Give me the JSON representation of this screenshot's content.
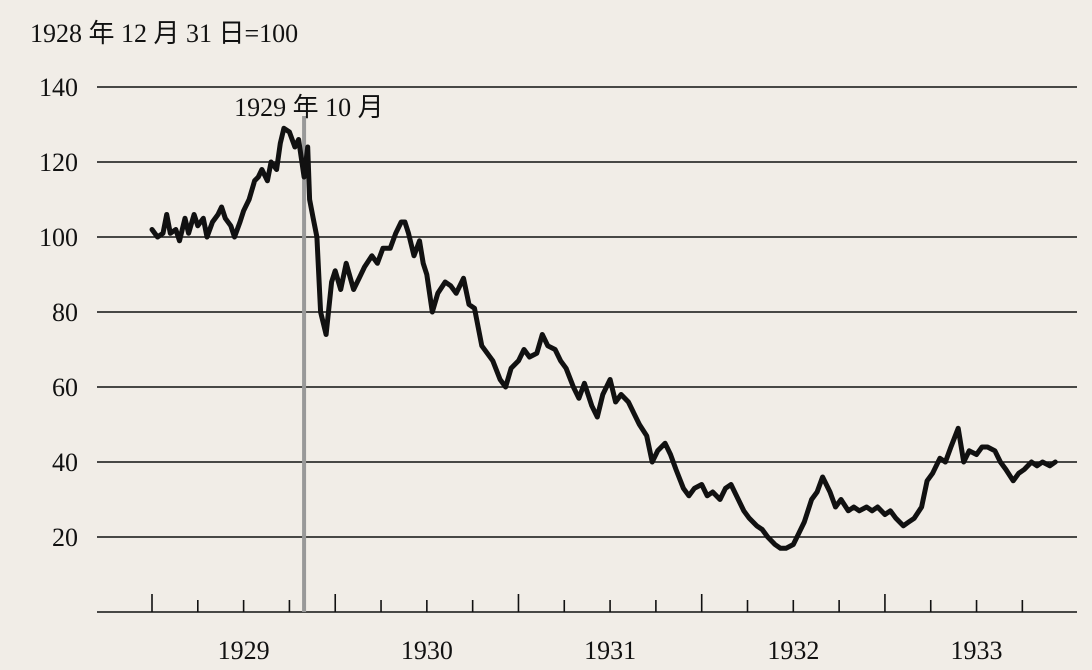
{
  "chart_data": {
    "type": "line",
    "unit_label": "1928 年 12 月 31 日=100",
    "annotation": {
      "label": "1929 年 10 月",
      "x": 1929.83
    },
    "ylim": [
      0,
      140
    ],
    "yticks": [
      20,
      40,
      60,
      80,
      100,
      120,
      140
    ],
    "ytick_labels": [
      "20",
      "40",
      "60",
      "80",
      "100",
      "120",
      "140"
    ],
    "xlim": [
      1929,
      1933.95
    ],
    "xtick_labels": [
      {
        "label": "1929",
        "x": 1929.5
      },
      {
        "label": "1930",
        "x": 1930.5
      },
      {
        "label": "1931",
        "x": 1931.5
      },
      {
        "label": "1932",
        "x": 1932.5
      },
      {
        "label": "1933",
        "x": 1933.5
      }
    ],
    "grid": true,
    "colors": {
      "line": "#111111",
      "annotation_line": "#999999",
      "grid": "#111111",
      "background": "#f1ede7"
    },
    "series": [
      {
        "x": [
          1929.0,
          1929.03,
          1929.06,
          1929.08,
          1929.1,
          1929.13,
          1929.15,
          1929.18,
          1929.2,
          1929.23,
          1929.25,
          1929.28,
          1929.3,
          1929.33,
          1929.36,
          1929.38,
          1929.4,
          1929.43,
          1929.45,
          1929.48,
          1929.5,
          1929.53,
          1929.56,
          1929.58,
          1929.6,
          1929.63,
          1929.65,
          1929.68,
          1929.7,
          1929.72,
          1929.75,
          1929.78,
          1929.8,
          1929.83,
          1929.85,
          1929.86,
          1929.88,
          1929.9,
          1929.92,
          1929.95,
          1929.98,
          1930.0,
          1930.03,
          1930.06,
          1930.1,
          1930.13,
          1930.16,
          1930.2,
          1930.23,
          1930.26,
          1930.3,
          1930.33,
          1930.36,
          1930.38,
          1930.4,
          1930.43,
          1930.46,
          1930.48,
          1930.5,
          1930.53,
          1930.56,
          1930.6,
          1930.63,
          1930.66,
          1930.7,
          1930.73,
          1930.76,
          1930.8,
          1930.83,
          1930.86,
          1930.9,
          1930.93,
          1930.96,
          1931.0,
          1931.03,
          1931.06,
          1931.1,
          1931.13,
          1931.16,
          1931.2,
          1931.23,
          1931.26,
          1931.3,
          1931.33,
          1931.36,
          1931.4,
          1931.43,
          1931.46,
          1931.5,
          1931.53,
          1931.56,
          1931.6,
          1931.63,
          1931.66,
          1931.7,
          1931.73,
          1931.76,
          1931.8,
          1931.83,
          1931.86,
          1931.9,
          1931.93,
          1931.96,
          1932.0,
          1932.03,
          1932.06,
          1932.1,
          1932.13,
          1932.16,
          1932.2,
          1932.23,
          1932.26,
          1932.3,
          1932.33,
          1932.36,
          1932.4,
          1932.43,
          1932.46,
          1932.5,
          1932.53,
          1932.56,
          1932.6,
          1932.63,
          1932.66,
          1932.7,
          1932.73,
          1932.76,
          1932.8,
          1932.83,
          1932.86,
          1932.9,
          1932.93,
          1932.96,
          1933.0,
          1933.03,
          1933.06,
          1933.1,
          1933.13,
          1933.16,
          1933.2,
          1933.23,
          1933.26,
          1933.3,
          1933.33,
          1933.36,
          1933.4,
          1933.43,
          1933.46,
          1933.5,
          1933.53,
          1933.56,
          1933.6,
          1933.63,
          1933.66,
          1933.7,
          1933.73,
          1933.76,
          1933.8,
          1933.83,
          1933.86,
          1933.9,
          1933.93
        ],
        "values": [
          102,
          100,
          101,
          106,
          101,
          102,
          99,
          105,
          101,
          106,
          103,
          105,
          100,
          104,
          106,
          108,
          105,
          103,
          100,
          104,
          107,
          110,
          115,
          116,
          118,
          115,
          120,
          118,
          125,
          129,
          128,
          124,
          126,
          116,
          124,
          110,
          105,
          100,
          80,
          74,
          88,
          91,
          86,
          93,
          86,
          89,
          92,
          95,
          93,
          97,
          97,
          101,
          104,
          104,
          101,
          95,
          99,
          93,
          90,
          80,
          85,
          88,
          87,
          85,
          89,
          82,
          81,
          71,
          69,
          67,
          62,
          60,
          65,
          67,
          70,
          68,
          69,
          74,
          71,
          70,
          67,
          65,
          60,
          57,
          61,
          55,
          52,
          58,
          62,
          56,
          58,
          56,
          53,
          50,
          47,
          40,
          43,
          45,
          42,
          38,
          33,
          31,
          33,
          34,
          31,
          32,
          30,
          33,
          34,
          30,
          27,
          25,
          23,
          22,
          20,
          18,
          17,
          17,
          18,
          21,
          24,
          30,
          32,
          36,
          32,
          28,
          30,
          27,
          28,
          27,
          28,
          27,
          28,
          26,
          27,
          25,
          23,
          24,
          25,
          28,
          35,
          37,
          41,
          40,
          44,
          49,
          40,
          43,
          42,
          44,
          44,
          43,
          40,
          38,
          35,
          37,
          38,
          40,
          39,
          40,
          39,
          40
        ]
      }
    ]
  }
}
